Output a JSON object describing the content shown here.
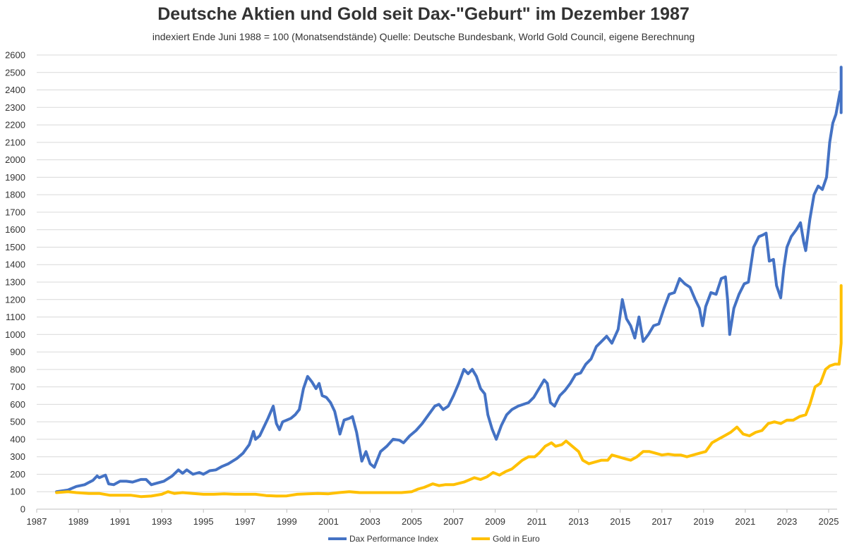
{
  "chart_data": {
    "type": "line",
    "title": "Deutsche Aktien und Gold seit Dax-\"Geburt\" im Dezember 1987",
    "subtitle": "indexiert Ende Juni 1988 = 100 (Monatsendstände) Quelle: Deutsche Bundesbank, World Gold Council, eigene Berechnung",
    "xlabel": "",
    "ylabel": "",
    "xlim": [
      1987,
      2025.6
    ],
    "ylim": [
      0,
      2600
    ],
    "grid": true,
    "legend_position": "bottom",
    "x_ticks": [
      "1987",
      "1989",
      "1991",
      "1993",
      "1995",
      "1997",
      "1999",
      "2001",
      "2003",
      "2005",
      "2007",
      "2009",
      "2011",
      "2013",
      "2015",
      "2017",
      "2019",
      "2021",
      "2023",
      "2025"
    ],
    "y_ticks": [
      0,
      100,
      200,
      300,
      400,
      500,
      600,
      700,
      800,
      900,
      1000,
      1100,
      1200,
      1300,
      1400,
      1500,
      1600,
      1700,
      1800,
      1900,
      2000,
      2100,
      2200,
      2300,
      2400,
      2500,
      2600
    ],
    "series": [
      {
        "name": "Dax Performance Index",
        "color": "#4472C4",
        "points": [
          [
            1987.95,
            100
          ],
          [
            1988.5,
            110
          ],
          [
            1988.9,
            130
          ],
          [
            1989.3,
            140
          ],
          [
            1989.7,
            165
          ],
          [
            1989.9,
            190
          ],
          [
            1990.0,
            180
          ],
          [
            1990.3,
            195
          ],
          [
            1990.45,
            145
          ],
          [
            1990.7,
            140
          ],
          [
            1991.0,
            160
          ],
          [
            1991.3,
            160
          ],
          [
            1991.6,
            155
          ],
          [
            1992.0,
            170
          ],
          [
            1992.25,
            170
          ],
          [
            1992.5,
            140
          ],
          [
            1992.8,
            150
          ],
          [
            1993.1,
            160
          ],
          [
            1993.5,
            190
          ],
          [
            1993.8,
            225
          ],
          [
            1994.0,
            205
          ],
          [
            1994.2,
            225
          ],
          [
            1994.5,
            200
          ],
          [
            1994.8,
            210
          ],
          [
            1995.0,
            200
          ],
          [
            1995.3,
            220
          ],
          [
            1995.6,
            225
          ],
          [
            1995.9,
            245
          ],
          [
            1996.2,
            260
          ],
          [
            1996.6,
            290
          ],
          [
            1996.9,
            320
          ],
          [
            1997.2,
            370
          ],
          [
            1997.4,
            445
          ],
          [
            1997.5,
            400
          ],
          [
            1997.7,
            420
          ],
          [
            1997.9,
            470
          ],
          [
            1998.1,
            520
          ],
          [
            1998.35,
            590
          ],
          [
            1998.5,
            490
          ],
          [
            1998.65,
            455
          ],
          [
            1998.8,
            500
          ],
          [
            1999.0,
            510
          ],
          [
            1999.2,
            520
          ],
          [
            1999.4,
            540
          ],
          [
            1999.6,
            570
          ],
          [
            1999.8,
            690
          ],
          [
            2000.0,
            760
          ],
          [
            2000.2,
            730
          ],
          [
            2000.4,
            690
          ],
          [
            2000.55,
            720
          ],
          [
            2000.7,
            650
          ],
          [
            2000.9,
            640
          ],
          [
            2001.1,
            610
          ],
          [
            2001.3,
            560
          ],
          [
            2001.55,
            430
          ],
          [
            2001.75,
            510
          ],
          [
            2002.0,
            520
          ],
          [
            2002.15,
            530
          ],
          [
            2002.35,
            440
          ],
          [
            2002.6,
            275
          ],
          [
            2002.8,
            330
          ],
          [
            2003.0,
            260
          ],
          [
            2003.2,
            240
          ],
          [
            2003.5,
            330
          ],
          [
            2003.8,
            360
          ],
          [
            2004.1,
            400
          ],
          [
            2004.4,
            395
          ],
          [
            2004.6,
            380
          ],
          [
            2004.9,
            420
          ],
          [
            2005.2,
            450
          ],
          [
            2005.5,
            490
          ],
          [
            2005.8,
            540
          ],
          [
            2006.1,
            590
          ],
          [
            2006.3,
            600
          ],
          [
            2006.5,
            570
          ],
          [
            2006.75,
            590
          ],
          [
            2007.0,
            650
          ],
          [
            2007.25,
            720
          ],
          [
            2007.5,
            800
          ],
          [
            2007.7,
            775
          ],
          [
            2007.9,
            800
          ],
          [
            2008.1,
            760
          ],
          [
            2008.3,
            690
          ],
          [
            2008.5,
            660
          ],
          [
            2008.65,
            540
          ],
          [
            2008.85,
            460
          ],
          [
            2009.05,
            400
          ],
          [
            2009.3,
            480
          ],
          [
            2009.55,
            540
          ],
          [
            2009.8,
            570
          ],
          [
            2010.1,
            590
          ],
          [
            2010.35,
            600
          ],
          [
            2010.6,
            610
          ],
          [
            2010.85,
            640
          ],
          [
            2011.1,
            690
          ],
          [
            2011.35,
            740
          ],
          [
            2011.5,
            720
          ],
          [
            2011.65,
            610
          ],
          [
            2011.85,
            590
          ],
          [
            2012.1,
            650
          ],
          [
            2012.35,
            680
          ],
          [
            2012.6,
            720
          ],
          [
            2012.85,
            770
          ],
          [
            2013.1,
            780
          ],
          [
            2013.35,
            830
          ],
          [
            2013.6,
            860
          ],
          [
            2013.85,
            930
          ],
          [
            2014.1,
            960
          ],
          [
            2014.35,
            990
          ],
          [
            2014.6,
            950
          ],
          [
            2014.9,
            1030
          ],
          [
            2015.1,
            1200
          ],
          [
            2015.3,
            1090
          ],
          [
            2015.5,
            1050
          ],
          [
            2015.7,
            980
          ],
          [
            2015.9,
            1100
          ],
          [
            2016.1,
            960
          ],
          [
            2016.35,
            1000
          ],
          [
            2016.6,
            1050
          ],
          [
            2016.85,
            1060
          ],
          [
            2017.1,
            1150
          ],
          [
            2017.35,
            1230
          ],
          [
            2017.6,
            1240
          ],
          [
            2017.85,
            1320
          ],
          [
            2018.1,
            1290
          ],
          [
            2018.35,
            1270
          ],
          [
            2018.6,
            1200
          ],
          [
            2018.8,
            1150
          ],
          [
            2018.95,
            1050
          ],
          [
            2019.1,
            1160
          ],
          [
            2019.35,
            1240
          ],
          [
            2019.6,
            1230
          ],
          [
            2019.85,
            1320
          ],
          [
            2020.05,
            1330
          ],
          [
            2020.15,
            1200
          ],
          [
            2020.25,
            1000
          ],
          [
            2020.45,
            1150
          ],
          [
            2020.7,
            1230
          ],
          [
            2020.95,
            1290
          ],
          [
            2021.15,
            1300
          ],
          [
            2021.4,
            1500
          ],
          [
            2021.65,
            1560
          ],
          [
            2021.85,
            1570
          ],
          [
            2022.0,
            1580
          ],
          [
            2022.15,
            1420
          ],
          [
            2022.35,
            1430
          ],
          [
            2022.5,
            1280
          ],
          [
            2022.7,
            1210
          ],
          [
            2022.85,
            1380
          ],
          [
            2023.0,
            1500
          ],
          [
            2023.2,
            1560
          ],
          [
            2023.45,
            1600
          ],
          [
            2023.65,
            1640
          ],
          [
            2023.8,
            1530
          ],
          [
            2023.9,
            1480
          ],
          [
            2024.1,
            1660
          ],
          [
            2024.3,
            1800
          ],
          [
            2024.5,
            1850
          ],
          [
            2024.7,
            1830
          ],
          [
            2024.9,
            1900
          ],
          [
            2025.05,
            2100
          ],
          [
            2025.2,
            2210
          ],
          [
            2025.35,
            2260
          ],
          [
            2025.55,
            2390
          ],
          [
            2025.7,
            2380
          ],
          [
            2025.85,
            2530
          ],
          [
            2025.9,
            2500
          ],
          [
            2025.95,
            2270
          ],
          [
            2026.0,
            2430
          ]
        ]
      },
      {
        "name": "Gold in Euro",
        "color": "#FFC000",
        "points": [
          [
            1987.95,
            95
          ],
          [
            1988.5,
            100
          ],
          [
            1988.9,
            95
          ],
          [
            1989.5,
            90
          ],
          [
            1990.0,
            90
          ],
          [
            1990.5,
            80
          ],
          [
            1991.0,
            80
          ],
          [
            1991.5,
            80
          ],
          [
            1992.0,
            72
          ],
          [
            1992.5,
            75
          ],
          [
            1993.0,
            85
          ],
          [
            1993.3,
            100
          ],
          [
            1993.6,
            90
          ],
          [
            1994.0,
            95
          ],
          [
            1994.5,
            90
          ],
          [
            1995.0,
            85
          ],
          [
            1995.5,
            85
          ],
          [
            1996.0,
            88
          ],
          [
            1996.5,
            85
          ],
          [
            1997.0,
            85
          ],
          [
            1997.5,
            85
          ],
          [
            1998.0,
            78
          ],
          [
            1998.5,
            75
          ],
          [
            1999.0,
            76
          ],
          [
            1999.5,
            85
          ],
          [
            2000.0,
            88
          ],
          [
            2000.5,
            90
          ],
          [
            2001.0,
            88
          ],
          [
            2001.5,
            95
          ],
          [
            2002.0,
            100
          ],
          [
            2002.5,
            95
          ],
          [
            2003.0,
            95
          ],
          [
            2003.5,
            95
          ],
          [
            2004.0,
            95
          ],
          [
            2004.5,
            95
          ],
          [
            2005.0,
            100
          ],
          [
            2005.3,
            115
          ],
          [
            2005.6,
            125
          ],
          [
            2006.0,
            145
          ],
          [
            2006.3,
            135
          ],
          [
            2006.6,
            140
          ],
          [
            2007.0,
            140
          ],
          [
            2007.5,
            155
          ],
          [
            2008.0,
            180
          ],
          [
            2008.3,
            170
          ],
          [
            2008.6,
            185
          ],
          [
            2008.9,
            210
          ],
          [
            2009.2,
            195
          ],
          [
            2009.5,
            215
          ],
          [
            2009.8,
            230
          ],
          [
            2010.0,
            250
          ],
          [
            2010.3,
            280
          ],
          [
            2010.6,
            300
          ],
          [
            2010.9,
            300
          ],
          [
            2011.1,
            320
          ],
          [
            2011.4,
            360
          ],
          [
            2011.7,
            380
          ],
          [
            2011.9,
            360
          ],
          [
            2012.2,
            370
          ],
          [
            2012.4,
            390
          ],
          [
            2012.7,
            360
          ],
          [
            2013.0,
            330
          ],
          [
            2013.2,
            280
          ],
          [
            2013.5,
            260
          ],
          [
            2013.8,
            270
          ],
          [
            2014.1,
            280
          ],
          [
            2014.4,
            280
          ],
          [
            2014.6,
            310
          ],
          [
            2014.9,
            300
          ],
          [
            2015.2,
            290
          ],
          [
            2015.5,
            280
          ],
          [
            2015.8,
            300
          ],
          [
            2016.1,
            330
          ],
          [
            2016.4,
            330
          ],
          [
            2016.7,
            320
          ],
          [
            2017.0,
            310
          ],
          [
            2017.3,
            315
          ],
          [
            2017.6,
            310
          ],
          [
            2017.9,
            310
          ],
          [
            2018.2,
            300
          ],
          [
            2018.5,
            310
          ],
          [
            2018.8,
            320
          ],
          [
            2019.1,
            330
          ],
          [
            2019.4,
            380
          ],
          [
            2019.7,
            400
          ],
          [
            2020.0,
            420
          ],
          [
            2020.3,
            440
          ],
          [
            2020.6,
            470
          ],
          [
            2020.9,
            430
          ],
          [
            2021.2,
            420
          ],
          [
            2021.5,
            440
          ],
          [
            2021.8,
            450
          ],
          [
            2022.1,
            490
          ],
          [
            2022.4,
            500
          ],
          [
            2022.7,
            490
          ],
          [
            2023.0,
            510
          ],
          [
            2023.3,
            510
          ],
          [
            2023.6,
            530
          ],
          [
            2023.9,
            540
          ],
          [
            2024.1,
            600
          ],
          [
            2024.35,
            700
          ],
          [
            2024.6,
            720
          ],
          [
            2024.85,
            800
          ],
          [
            2025.05,
            820
          ],
          [
            2025.3,
            830
          ],
          [
            2025.5,
            830
          ],
          [
            2025.65,
            950
          ],
          [
            2025.75,
            1050
          ],
          [
            2025.82,
            1280
          ],
          [
            2025.9,
            1260
          ],
          [
            2025.97,
            1150
          ],
          [
            2026.0,
            1130
          ]
        ]
      }
    ],
    "legend": [
      "Dax Performance Index",
      "Gold in Euro"
    ]
  }
}
